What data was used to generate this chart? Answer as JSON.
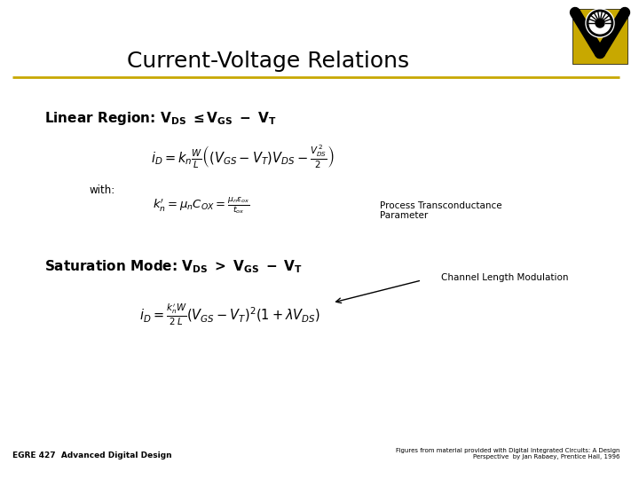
{
  "title": "Current-Voltage Relations",
  "title_fontsize": 18,
  "title_color": "#000000",
  "bg_color": "#ffffff",
  "separator_color": "#c8a800",
  "footer_left": "EGRE 427  Advanced Digital Design",
  "footer_right": "Figures from material provided with Digital Integrated Circuits: A Design\nPerspective  by Jan Rabaey, Prentice Hall, 1996",
  "linear_region_label": "Linear Region: $\\mathbf{V_{DS}}$ $\\mathbf{\\leq}$$\\mathbf{V_{GS}}$ $\\mathbf{-}$ $\\mathbf{V_T}$",
  "linear_eq": "$i_D = k_n \\frac{W}{L}\\left((V_{GS} - V_T)V_{DS} - \\frac{V_{DS}^{\\,2}}{2}\\right)$",
  "with_text": "with:",
  "kn_eq": "$k_n^{\\prime} = \\mu_n C_{OX} = \\frac{\\mu_n \\varepsilon_{ox}}{t_{ox}}$",
  "process_label": "Process Transconductance\nParameter",
  "saturation_label": "Saturation Mode: $\\mathbf{V_{DS}}$ $\\mathbf{>}$ $\\mathbf{V_{GS}}$ $\\mathbf{-}$ $\\mathbf{V_T}$",
  "channel_length_label": "Channel Length Modulation",
  "sat_eq": "$i_D = \\frac{k_n^{\\prime} W}{2 \\; L}(V_{GS} - V_T)^2(1 + \\lambda V_{DS})$",
  "logo_gold": "#c8a800",
  "logo_black": "#000000"
}
